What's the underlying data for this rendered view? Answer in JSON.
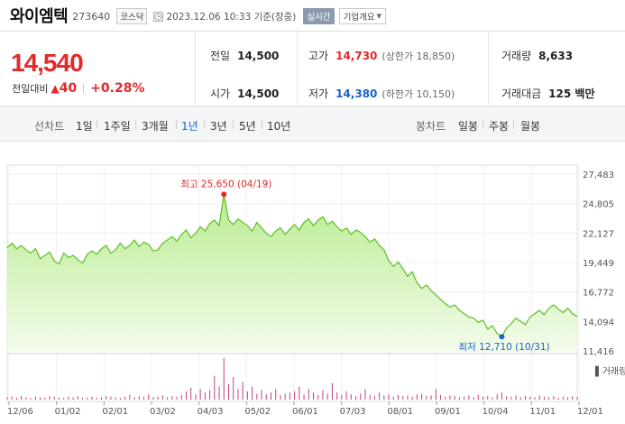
{
  "header": {
    "stock_name": "와이엠텍",
    "stock_code": "273640",
    "market": "코스닥",
    "timestamp": "2023.12.06 10:33",
    "timestamp_note": "기준(장중)",
    "realtime_label": "실시간",
    "overview_label": "기업개요"
  },
  "price": {
    "current": "14,540",
    "change_label": "전일대비",
    "change": "40",
    "change_pct": "+0.28%"
  },
  "stats": {
    "prev_close_label": "전일",
    "prev_close": "14,500",
    "high_label": "고가",
    "high": "14,730",
    "upper_limit": "(상한가 18,850)",
    "volume_label": "거래량",
    "volume": "8,633",
    "open_label": "시가",
    "open": "14,500",
    "low_label": "저가",
    "low": "14,380",
    "lower_limit": "(하한가 10,150)",
    "trade_value_label": "거래대금",
    "trade_value": "125 백만"
  },
  "periods": {
    "line_label": "선차트",
    "line_items": [
      "1일",
      "1주일",
      "3개월",
      "1년",
      "3년",
      "5년",
      "10년"
    ],
    "active": "1년",
    "candle_label": "봉차트",
    "candle_items": [
      "일봉",
      "주봉",
      "월봉"
    ]
  },
  "colors": {
    "up": "#e32929",
    "down": "#1a62c7",
    "line": "#64c32f",
    "fill": "#c9f0a7"
  },
  "chart_data": {
    "type": "area",
    "yticks": [
      "27,483",
      "24,805",
      "22,127",
      "19,449",
      "16,772",
      "14,094",
      "11,416"
    ],
    "ylim": [
      11416,
      27483
    ],
    "xlabels": [
      "12/06",
      "01/02",
      "02/01",
      "03/02",
      "04/03",
      "05/02",
      "06/01",
      "07/03",
      "08/01",
      "09/01",
      "10/04",
      "11/01",
      "12/01"
    ],
    "max_label": "최고 25,650 (04/19)",
    "min_label": "최저 12,710 (10/31)",
    "volume_legend": "거래량",
    "series": [
      {
        "values": [
          20800,
          21200,
          20700,
          21000,
          20600,
          20300,
          20700,
          19800,
          20100,
          20400,
          19600,
          19300,
          20300,
          19900,
          20100,
          19700,
          19400,
          20200,
          20500,
          20200,
          20700,
          21000,
          20300,
          20600,
          21200,
          20700,
          21000,
          21500,
          20900,
          21300,
          21100,
          20500,
          20600,
          21200,
          21500,
          21800,
          21400,
          22000,
          22400,
          21700,
          22100,
          22700,
          22300,
          23000,
          23300,
          22800,
          25650,
          23300,
          22900,
          23400,
          23100,
          22800,
          22300,
          23100,
          22600,
          22100,
          21800,
          22300,
          22600,
          22000,
          22500,
          22900,
          22400,
          23100,
          23400,
          22800,
          23300,
          23600,
          22900,
          23200,
          22700,
          22300,
          22600,
          22000,
          22400,
          22200,
          21800,
          21300,
          21600,
          21000,
          20600,
          19600,
          19100,
          19500,
          18900,
          18200,
          18600,
          17600,
          17100,
          17400,
          16900,
          16500,
          16100,
          15700,
          15400,
          15600,
          15100,
          14800,
          14500,
          14400,
          14000,
          14200,
          13400,
          13700,
          13000,
          12710,
          13500,
          13900,
          14400,
          14100,
          13800,
          14500,
          14800,
          15100,
          14700,
          15300,
          15600,
          15200,
          14900,
          15300,
          14800,
          14540
        ]
      }
    ],
    "volume": [
      4,
      5,
      3,
      6,
      4,
      3,
      5,
      4,
      3,
      6,
      5,
      4,
      3,
      5,
      4,
      6,
      3,
      4,
      5,
      3,
      4,
      6,
      5,
      4,
      3,
      5,
      8,
      4,
      6,
      5,
      9,
      4,
      5,
      7,
      4,
      6,
      5,
      8,
      14,
      20,
      9,
      18,
      12,
      16,
      40,
      22,
      70,
      26,
      38,
      18,
      30,
      14,
      22,
      10,
      16,
      9,
      12,
      18,
      8,
      10,
      12,
      14,
      22,
      9,
      18,
      12,
      8,
      16,
      10,
      28,
      12,
      8,
      14,
      9,
      6,
      10,
      18,
      8,
      6,
      12,
      7,
      9,
      5,
      8,
      6,
      7,
      5,
      9,
      10,
      6,
      7,
      18,
      8,
      5,
      7,
      6,
      4,
      5,
      7,
      4,
      8,
      5,
      6,
      4,
      9,
      12,
      6,
      5,
      7,
      4,
      6,
      5,
      4,
      7,
      5,
      4,
      6,
      3,
      5,
      4,
      6,
      5
    ]
  }
}
